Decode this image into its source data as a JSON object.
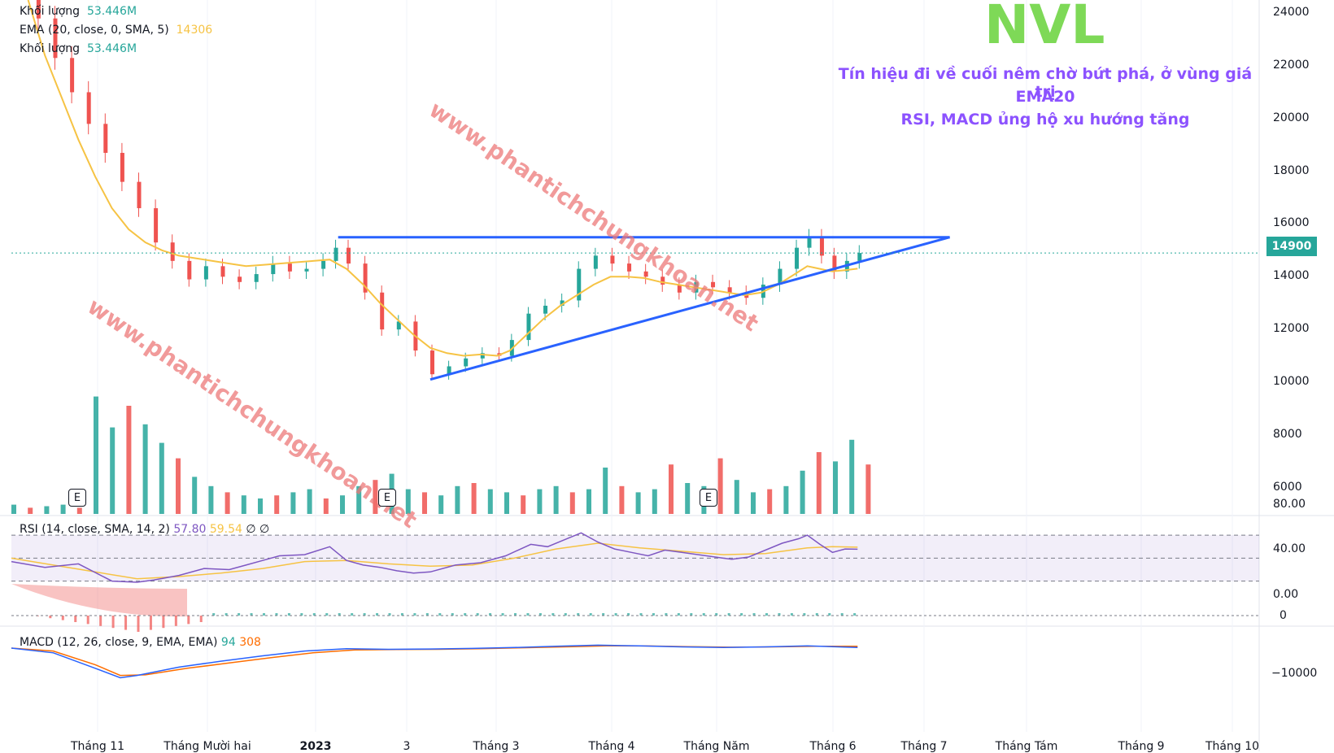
{
  "legend": {
    "vol_label": "Khối lượng",
    "vol_value": "53.446M",
    "ema_label": "EMA (20, close, 0, SMA, 5)",
    "ema_value": "14306",
    "vol2_label": "Khối lượng",
    "vol2_value": "53.446M",
    "rsi_label": "RSI (14, close, SMA, 14, 2)",
    "rsi_value1": "57.80",
    "rsi_value2": "59.54",
    "rsi_value3": "∅ ∅",
    "macd_label": "MACD (12, 26, close, 9, EMA, EMA)",
    "macd_value1": "94",
    "macd_value2": "308"
  },
  "annotation": {
    "ticker": "NVL",
    "line1": "Tín hiệu đi về cuối nêm chờ bứt phá, ở vùng giá trị",
    "line2": "EMA20",
    "line3": "RSI, MACD ủng hộ xu hướng tăng"
  },
  "watermarks": [
    "www.phantichchungkhoan.net",
    "www.phantichchungkhoan.net"
  ],
  "earnings_marker": "E",
  "last_price_tag": "14900",
  "colors": {
    "up": "#26a69a",
    "down": "#ef5350",
    "ema": "#f6c344",
    "trendline": "#2962ff",
    "rsi": "#7e57c2",
    "macd": "#2962ff",
    "signal": "#ff6d00",
    "note": "#8c52ff",
    "ticker": "#7ed957"
  },
  "chart_data": {
    "type": "candlestick",
    "price_axis": {
      "ticks": [
        "24000",
        "22000",
        "20000",
        "18000",
        "16000",
        "14000",
        "12000",
        "10000",
        "8000",
        "6000"
      ],
      "ylim": [
        5000,
        24500
      ]
    },
    "rsi_axis": {
      "ticks": [
        "80.00",
        "40.00",
        "0.00"
      ],
      "ylim": [
        0,
        80
      ]
    },
    "macd_axis": {
      "ticks": [
        "0",
        "−10000"
      ]
    },
    "x_labels": [
      "Tháng 11",
      "Tháng Mười hai",
      "2023",
      "3",
      "Tháng 3",
      "Tháng 4",
      "Tháng Năm",
      "Tháng 6",
      "Tháng 7",
      "Tháng Tám",
      "Tháng 9",
      "Tháng 10"
    ],
    "price_path": [
      [
        0,
        24500
      ],
      [
        6,
        23800
      ],
      [
        10,
        22300
      ],
      [
        14,
        21000
      ],
      [
        18,
        19800
      ],
      [
        22,
        18700
      ],
      [
        26,
        17600
      ],
      [
        30,
        16600
      ],
      [
        34,
        15300
      ],
      [
        38,
        14600
      ],
      [
        42,
        13900
      ],
      [
        46,
        14400
      ],
      [
        50,
        14000
      ],
      [
        54,
        13800
      ],
      [
        58,
        14100
      ],
      [
        62,
        14500
      ],
      [
        66,
        14200
      ],
      [
        70,
        14300
      ],
      [
        74,
        14600
      ],
      [
        77,
        15100
      ],
      [
        80,
        14500
      ],
      [
        84,
        13400
      ],
      [
        88,
        12000
      ],
      [
        92,
        12300
      ],
      [
        96,
        11200
      ],
      [
        100,
        10300
      ],
      [
        104,
        10600
      ],
      [
        108,
        10900
      ],
      [
        112,
        11100
      ],
      [
        116,
        11000
      ],
      [
        119,
        11600
      ],
      [
        123,
        12600
      ],
      [
        127,
        12900
      ],
      [
        131,
        13100
      ],
      [
        135,
        14300
      ],
      [
        139,
        14800
      ],
      [
        143,
        14500
      ],
      [
        147,
        14200
      ],
      [
        151,
        14000
      ],
      [
        155,
        13700
      ],
      [
        159,
        13400
      ],
      [
        163,
        13800
      ],
      [
        167,
        13600
      ],
      [
        171,
        13400
      ],
      [
        175,
        13200
      ],
      [
        179,
        13700
      ],
      [
        183,
        14300
      ],
      [
        187,
        15100
      ],
      [
        190,
        15500
      ],
      [
        193,
        14800
      ],
      [
        196,
        14200
      ],
      [
        199,
        14600
      ],
      [
        202,
        14900
      ]
    ],
    "ema_path": [
      [
        4,
        24500
      ],
      [
        8,
        22400
      ],
      [
        12,
        20800
      ],
      [
        16,
        19200
      ],
      [
        20,
        17800
      ],
      [
        24,
        16600
      ],
      [
        28,
        15800
      ],
      [
        32,
        15300
      ],
      [
        36,
        15000
      ],
      [
        40,
        14800
      ],
      [
        44,
        14700
      ],
      [
        48,
        14600
      ],
      [
        52,
        14500
      ],
      [
        56,
        14400
      ],
      [
        60,
        14450
      ],
      [
        64,
        14500
      ],
      [
        68,
        14550
      ],
      [
        72,
        14600
      ],
      [
        76,
        14650
      ],
      [
        80,
        14300
      ],
      [
        84,
        13700
      ],
      [
        88,
        13000
      ],
      [
        92,
        12400
      ],
      [
        96,
        11800
      ],
      [
        100,
        11300
      ],
      [
        104,
        11100
      ],
      [
        108,
        11000
      ],
      [
        112,
        11050
      ],
      [
        116,
        11000
      ],
      [
        119,
        11200
      ],
      [
        123,
        11800
      ],
      [
        127,
        12400
      ],
      [
        131,
        12900
      ],
      [
        135,
        13300
      ],
      [
        139,
        13700
      ],
      [
        143,
        14000
      ],
      [
        147,
        14000
      ],
      [
        151,
        13950
      ],
      [
        155,
        13800
      ],
      [
        159,
        13700
      ],
      [
        163,
        13600
      ],
      [
        167,
        13500
      ],
      [
        171,
        13400
      ],
      [
        175,
        13300
      ],
      [
        179,
        13400
      ],
      [
        183,
        13700
      ],
      [
        187,
        14100
      ],
      [
        190,
        14400
      ],
      [
        193,
        14300
      ],
      [
        196,
        14200
      ],
      [
        199,
        14250
      ],
      [
        202,
        14306
      ]
    ],
    "volume_sample": [
      0.3,
      0.2,
      0.25,
      0.3,
      0.2,
      3.8,
      2.8,
      3.5,
      2.9,
      2.3,
      1.8,
      1.2,
      0.9,
      0.7,
      0.6,
      0.5,
      0.6,
      0.7,
      0.8,
      0.5,
      0.6,
      0.9,
      1.1,
      1.3,
      0.8,
      0.7,
      0.6,
      0.9,
      1.0,
      0.8,
      0.7,
      0.6,
      0.8,
      0.9,
      0.7,
      0.8,
      1.5,
      0.9,
      0.7,
      0.8,
      1.6,
      1.0,
      0.9,
      1.8,
      1.1,
      0.7,
      0.8,
      0.9,
      1.4,
      2.0,
      1.7,
      2.4,
      1.6
    ],
    "rsi_path": [
      [
        0,
        47
      ],
      [
        8,
        42
      ],
      [
        16,
        45
      ],
      [
        24,
        30
      ],
      [
        30,
        29
      ],
      [
        34,
        31
      ],
      [
        40,
        35
      ],
      [
        46,
        41
      ],
      [
        52,
        40
      ],
      [
        56,
        44
      ],
      [
        60,
        48
      ],
      [
        64,
        52
      ],
      [
        70,
        53
      ],
      [
        76,
        60
      ],
      [
        80,
        48
      ],
      [
        84,
        44
      ],
      [
        88,
        42
      ],
      [
        92,
        39
      ],
      [
        96,
        37
      ],
      [
        100,
        38
      ],
      [
        106,
        44
      ],
      [
        112,
        46
      ],
      [
        118,
        52
      ],
      [
        124,
        62
      ],
      [
        128,
        60
      ],
      [
        132,
        66
      ],
      [
        136,
        72
      ],
      [
        140,
        64
      ],
      [
        144,
        58
      ],
      [
        148,
        55
      ],
      [
        152,
        52
      ],
      [
        156,
        57
      ],
      [
        160,
        55
      ],
      [
        164,
        53
      ],
      [
        168,
        51
      ],
      [
        172,
        49
      ],
      [
        176,
        51
      ],
      [
        180,
        57
      ],
      [
        184,
        63
      ],
      [
        188,
        67
      ],
      [
        190,
        70
      ],
      [
        193,
        62
      ],
      [
        196,
        55
      ],
      [
        199,
        58
      ],
      [
        202,
        57.8
      ]
    ],
    "rsi_ma_path": [
      [
        0,
        50
      ],
      [
        10,
        44
      ],
      [
        20,
        38
      ],
      [
        30,
        32
      ],
      [
        40,
        34
      ],
      [
        50,
        37
      ],
      [
        60,
        41
      ],
      [
        70,
        47
      ],
      [
        80,
        48
      ],
      [
        90,
        45
      ],
      [
        100,
        43
      ],
      [
        110,
        44
      ],
      [
        120,
        50
      ],
      [
        130,
        58
      ],
      [
        140,
        63
      ],
      [
        150,
        59
      ],
      [
        160,
        56
      ],
      [
        170,
        53
      ],
      [
        180,
        54
      ],
      [
        190,
        59
      ],
      [
        196,
        60
      ],
      [
        202,
        59.54
      ]
    ],
    "macd_path": [
      [
        0,
        0
      ],
      [
        10,
        -800
      ],
      [
        20,
        -3400
      ],
      [
        26,
        -5000
      ],
      [
        30,
        -4600
      ],
      [
        40,
        -3200
      ],
      [
        50,
        -2200
      ],
      [
        60,
        -1300
      ],
      [
        70,
        -500
      ],
      [
        80,
        -100
      ],
      [
        90,
        -200
      ],
      [
        100,
        -150
      ],
      [
        110,
        -50
      ],
      [
        120,
        100
      ],
      [
        130,
        300
      ],
      [
        140,
        500
      ],
      [
        150,
        380
      ],
      [
        160,
        200
      ],
      [
        170,
        100
      ],
      [
        180,
        200
      ],
      [
        190,
        380
      ],
      [
        202,
        94
      ]
    ],
    "signal_path": [
      [
        0,
        0
      ],
      [
        10,
        -500
      ],
      [
        20,
        -2800
      ],
      [
        26,
        -4600
      ],
      [
        32,
        -4500
      ],
      [
        42,
        -3400
      ],
      [
        52,
        -2500
      ],
      [
        62,
        -1600
      ],
      [
        72,
        -800
      ],
      [
        82,
        -300
      ],
      [
        92,
        -250
      ],
      [
        102,
        -200
      ],
      [
        112,
        -100
      ],
      [
        122,
        50
      ],
      [
        132,
        200
      ],
      [
        142,
        380
      ],
      [
        152,
        350
      ],
      [
        162,
        250
      ],
      [
        172,
        150
      ],
      [
        182,
        200
      ],
      [
        192,
        300
      ],
      [
        202,
        308
      ]
    ],
    "trendlines": [
      {
        "from": [
          78,
          15500
        ],
        "to": [
          224,
          15500
        ]
      },
      {
        "from": [
          100,
          10100
        ],
        "to": [
          224,
          15500
        ]
      }
    ]
  }
}
